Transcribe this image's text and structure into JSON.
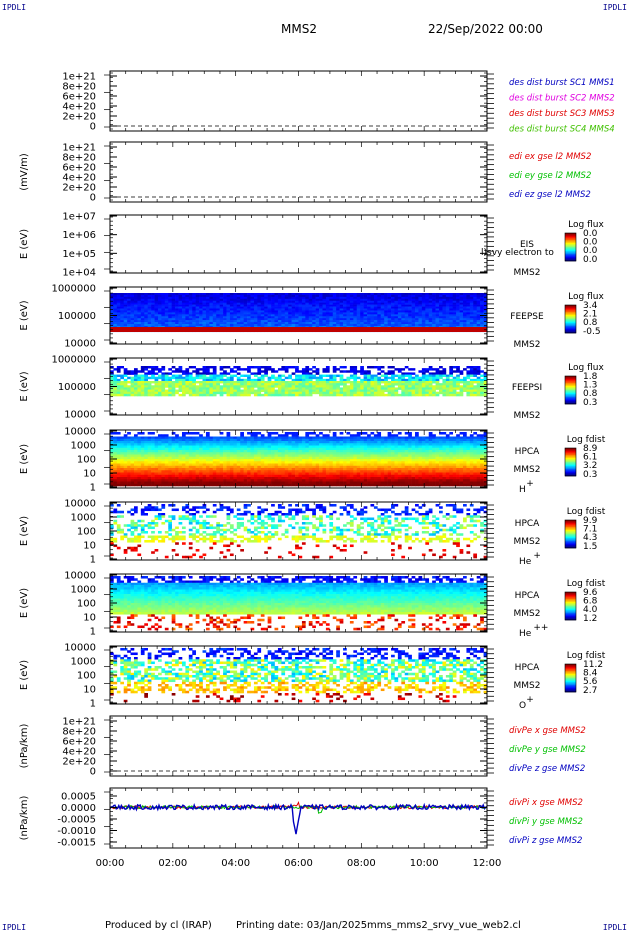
{
  "corners": {
    "tl": "IPDLI",
    "tr": "IPDLI",
    "bl": "IPDLI",
    "br": "IPDLI"
  },
  "header": {
    "spacecraft": "MMS2",
    "date": "22/Sep/2022 00:00"
  },
  "footer": {
    "produced": "Produced by cl (IRAP)",
    "printing_date": "Printing date: 03/Jan/2025",
    "file": "mms_mms2_srvy_vue_web2.cl"
  },
  "colors": {
    "red": "#e00000",
    "magenta": "#e000e0",
    "green": "#00c000",
    "blue": "#0000c0",
    "lime": "#40c000"
  },
  "chart_data": [
    {
      "type": "line",
      "panel": "des-dist",
      "ylabel": "",
      "yticks": [
        "1e+21",
        "8e+20",
        "6e+20",
        "4e+20",
        "2e+20",
        "0"
      ],
      "ylim": [
        0,
        1e+21
      ],
      "legend": [
        {
          "name": "des dist burst SC1 MMS1",
          "color": "#0000c0"
        },
        {
          "name": "des dist burst SC2 MMS2",
          "color": "#e000e0"
        },
        {
          "name": "des dist burst SC3 MMS3",
          "color": "#e00000"
        },
        {
          "name": "des dist burst SC4 MMS4",
          "color": "#40c000"
        }
      ]
    },
    {
      "type": "line",
      "panel": "edi",
      "ylabel": "(mV/m)",
      "yticks": [
        "1e+21",
        "8e+20",
        "6e+20",
        "4e+20",
        "2e+20",
        "0"
      ],
      "ylim": [
        0,
        1e+21
      ],
      "legend": [
        {
          "name": "edi ex gse l2 MMS2",
          "color": "#e00000"
        },
        {
          "name": "edi ey gse l2 MMS2",
          "color": "#00c000"
        },
        {
          "name": "edi ez gse l2 MMS2",
          "color": "#0000c0"
        }
      ]
    },
    {
      "type": "heatmap",
      "panel": "eis",
      "ylabel": "E (eV)",
      "yticks": [
        "1e+07",
        "1e+06",
        "1e+05",
        "1e+04"
      ],
      "label1": "EIS",
      "label2": "MMS2",
      "overlay": "l)svy electron to",
      "cbar_title": "Log flux",
      "cbar_ticks": [
        "0.0",
        "0.0",
        "0.0",
        "0.0"
      ]
    },
    {
      "type": "heatmap",
      "panel": "feeps-e",
      "ylabel": "E (eV)",
      "yticks": [
        "1000000",
        "100000",
        "10000"
      ],
      "label1": "FEEPSE",
      "label2": "MMS2",
      "cbar_title": "Log flux",
      "cbar_ticks": [
        "3.4",
        "2.1",
        "0.8",
        "-0.5"
      ]
    },
    {
      "type": "heatmap",
      "panel": "feeps-i",
      "ylabel": "E (eV)",
      "yticks": [
        "1000000",
        "100000",
        "10000"
      ],
      "label1": "FEEPSI",
      "label2": "MMS2",
      "cbar_title": "Log flux",
      "cbar_ticks": [
        "1.8",
        "1.3",
        "0.8",
        "0.3"
      ]
    },
    {
      "type": "heatmap",
      "panel": "hpca-h",
      "ylabel": "E (eV)",
      "yticks": [
        "10000",
        "1000",
        "100",
        "10",
        "1"
      ],
      "label1": "HPCA",
      "label2": "MMS2",
      "species": "H",
      "charge": "+",
      "cbar_title": "Log fdist",
      "cbar_ticks": [
        "8.9",
        "6.1",
        "3.2",
        "0.3"
      ]
    },
    {
      "type": "heatmap",
      "panel": "hpca-he",
      "ylabel": "E (eV)",
      "yticks": [
        "10000",
        "1000",
        "100",
        "10",
        "1"
      ],
      "label1": "HPCA",
      "label2": "MMS2",
      "species": "He",
      "charge": "+",
      "cbar_title": "Log fdist",
      "cbar_ticks": [
        "9.9",
        "7.1",
        "4.3",
        "1.5"
      ]
    },
    {
      "type": "heatmap",
      "panel": "hpca-hepp",
      "ylabel": "E (eV)",
      "yticks": [
        "10000",
        "1000",
        "100",
        "10",
        "1"
      ],
      "label1": "HPCA",
      "label2": "MMS2",
      "species": "He",
      "charge": "++",
      "cbar_title": "Log fdist",
      "cbar_ticks": [
        "9.6",
        "6.8",
        "4.0",
        "1.2"
      ]
    },
    {
      "type": "heatmap",
      "panel": "hpca-o",
      "ylabel": "E (eV)",
      "yticks": [
        "10000",
        "1000",
        "100",
        "10",
        "1"
      ],
      "label1": "HPCA",
      "label2": "MMS2",
      "species": "O",
      "charge": "+",
      "cbar_title": "Log fdist",
      "cbar_ticks": [
        "11.2",
        "8.4",
        "5.6",
        "2.7"
      ]
    },
    {
      "type": "line",
      "panel": "divpe",
      "ylabel": "(nPa/km)",
      "yticks": [
        "1e+21",
        "8e+20",
        "6e+20",
        "4e+20",
        "2e+20",
        "0"
      ],
      "ylim": [
        0,
        1e+21
      ],
      "legend": [
        {
          "name": "divPe x gse MMS2",
          "color": "#e00000"
        },
        {
          "name": "divPe y gse MMS2",
          "color": "#00c000"
        },
        {
          "name": "divPe z gse MMS2",
          "color": "#0000c0"
        }
      ]
    },
    {
      "type": "line",
      "panel": "divpi",
      "ylabel": "(nPa/km)",
      "yticks": [
        "0.0005",
        "0.0000",
        "-0.0005",
        "-0.0010",
        "-0.0015"
      ],
      "ylim": [
        -0.0017,
        0.0008
      ],
      "legend": [
        {
          "name": "divPi x gse MMS2",
          "color": "#e00000"
        },
        {
          "name": "divPi y gse MMS2",
          "color": "#00c000"
        },
        {
          "name": "divPi z gse MMS2",
          "color": "#0000c0"
        }
      ]
    }
  ],
  "xaxis": {
    "ticks": [
      "00:00",
      "02:00",
      "04:00",
      "06:00",
      "08:00",
      "10:00",
      "12:00"
    ]
  }
}
